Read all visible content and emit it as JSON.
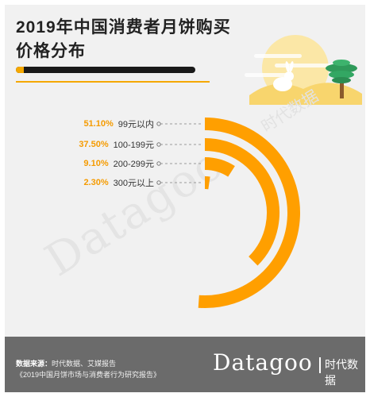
{
  "title": "2019年中国消费者月饼购买价格分布",
  "colors": {
    "accent": "#f59b00",
    "arc": "#ff9f00",
    "footer": "#6b6b6b",
    "background": "#f1f1f1"
  },
  "chart_data": {
    "type": "radial-bar",
    "title": "2019年中国消费者月饼购买价格分布",
    "unit": "%",
    "max": 100,
    "categories": [
      "99元以内",
      "100-199元",
      "200-299元",
      "300元以上"
    ],
    "values": [
      51.1,
      37.5,
      9.1,
      2.3
    ],
    "labels": [
      "51.10%",
      "37.50%",
      "9.10%",
      "2.30%"
    ]
  },
  "watermark": {
    "latin": "Datagoo",
    "cn": "时代数据"
  },
  "footer": {
    "source_label": "数据来源：",
    "source_text": "时代数据、艾媒报告",
    "report": "《2019中国月饼市场与消费者行为研究报告》",
    "brand": "Datagoo",
    "brand_cn": "时代数据"
  }
}
